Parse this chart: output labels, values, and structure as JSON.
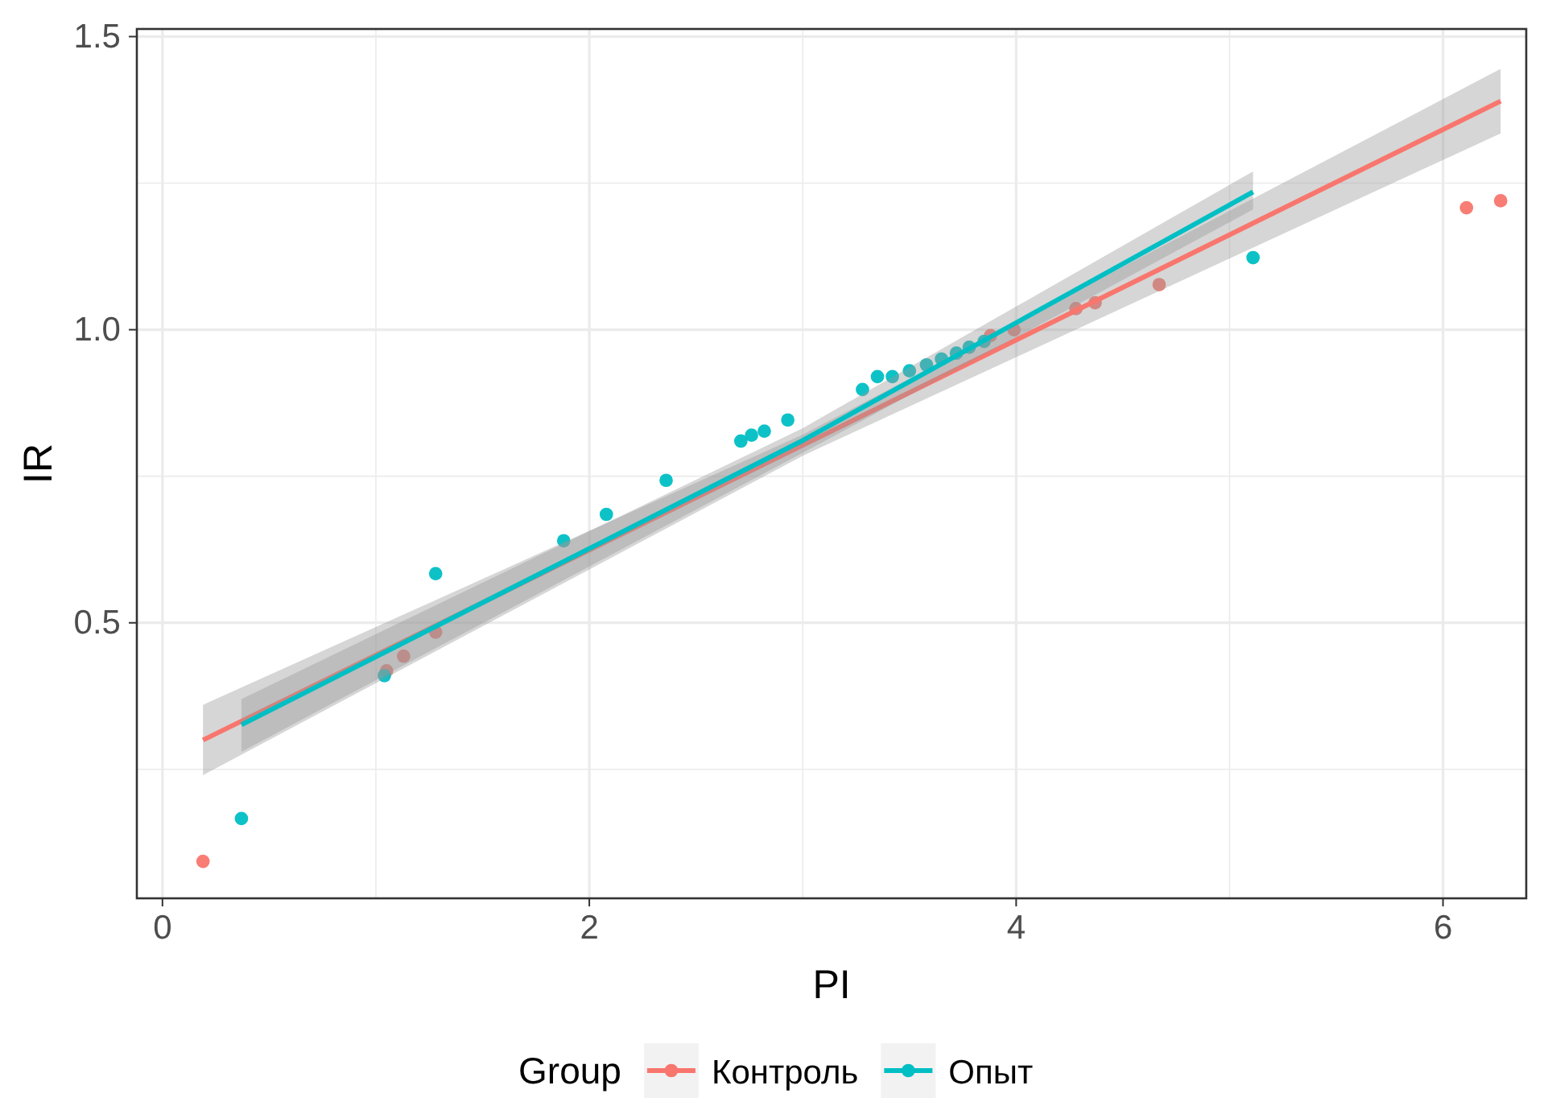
{
  "chart_data": {
    "type": "scatter",
    "xlabel": "PI",
    "ylabel": "IR",
    "legend_title": "Group",
    "legend": "bottom",
    "grid": true,
    "marker": "circle",
    "xlim": [
      -0.12,
      6.39
    ],
    "ylim": [
      0.03,
      1.513
    ],
    "xticks": [
      0,
      2,
      4,
      6
    ],
    "yticks": [
      0.5,
      {
        "value": 1,
        "label": "1.0"
      },
      1.5
    ],
    "series": [
      {
        "name": "Контроль",
        "color": "#f8766d",
        "x": [
          0.19,
          1.05,
          1.13,
          1.28,
          3.88,
          3.99,
          4.28,
          4.37,
          4.67,
          6.11,
          6.27
        ],
        "values": [
          0.093,
          0.418,
          0.443,
          0.484,
          0.99,
          1.0,
          1.036,
          1.046,
          1.077,
          1.208,
          1.22
        ]
      },
      {
        "name": "Опыт",
        "color": "#00bfc4",
        "x": [
          0.37,
          1.04,
          1.28,
          1.88,
          2.08,
          2.36,
          2.71,
          2.76,
          2.82,
          2.93,
          3.28,
          3.35,
          3.42,
          3.5,
          3.58,
          3.65,
          3.72,
          3.78,
          3.85,
          5.11
        ],
        "values": [
          0.166,
          0.41,
          0.584,
          0.64,
          0.685,
          0.743,
          0.81,
          0.82,
          0.827,
          0.846,
          0.898,
          0.92,
          0.92,
          0.93,
          0.94,
          0.95,
          0.96,
          0.97,
          0.98,
          1.123
        ]
      },
      {
        "color": "#f8766d",
        "type": "line",
        "marker": "none",
        "x": [
          0.19,
          3,
          6.27
        ],
        "values": [
          0.3,
          0.803,
          1.39
        ],
        "lower": [
          0.24,
          0.785,
          1.335
        ],
        "upper": [
          0.36,
          0.821,
          1.445
        ]
      },
      {
        "color": "#00bfc4",
        "type": "line",
        "marker": "none",
        "x": [
          0.37,
          3,
          5.11
        ],
        "values": [
          0.326,
          0.811,
          1.235
        ],
        "lower": [
          0.28,
          0.79,
          1.205
        ],
        "upper": [
          0.37,
          0.832,
          1.27
        ]
      }
    ]
  }
}
